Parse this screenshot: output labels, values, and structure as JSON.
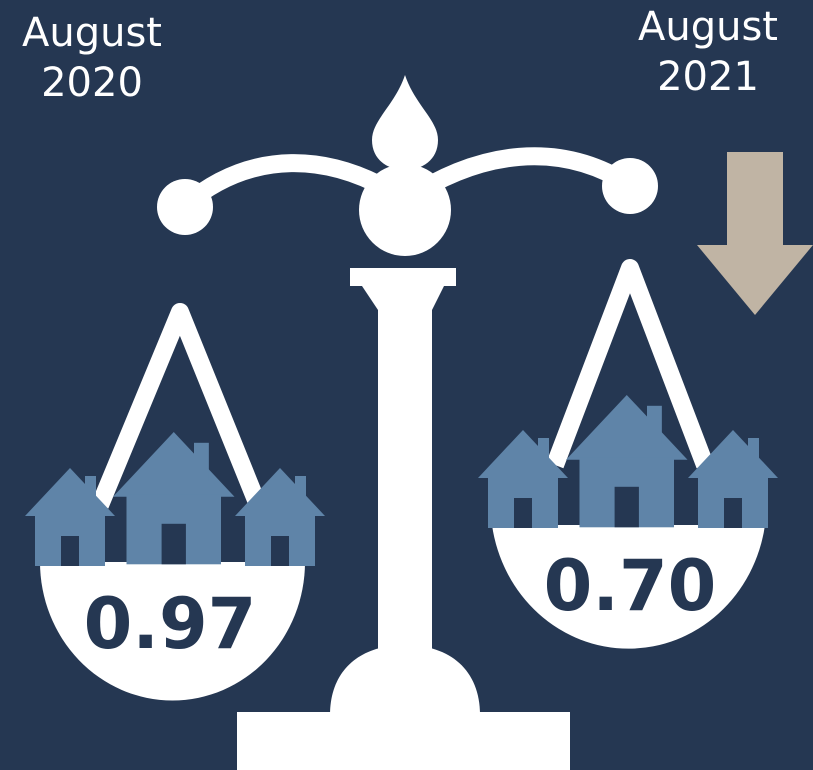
{
  "left": {
    "month": "August",
    "year": "2020",
    "value": "0.97"
  },
  "right": {
    "month": "August",
    "year": "2021",
    "value": "0.70"
  }
}
